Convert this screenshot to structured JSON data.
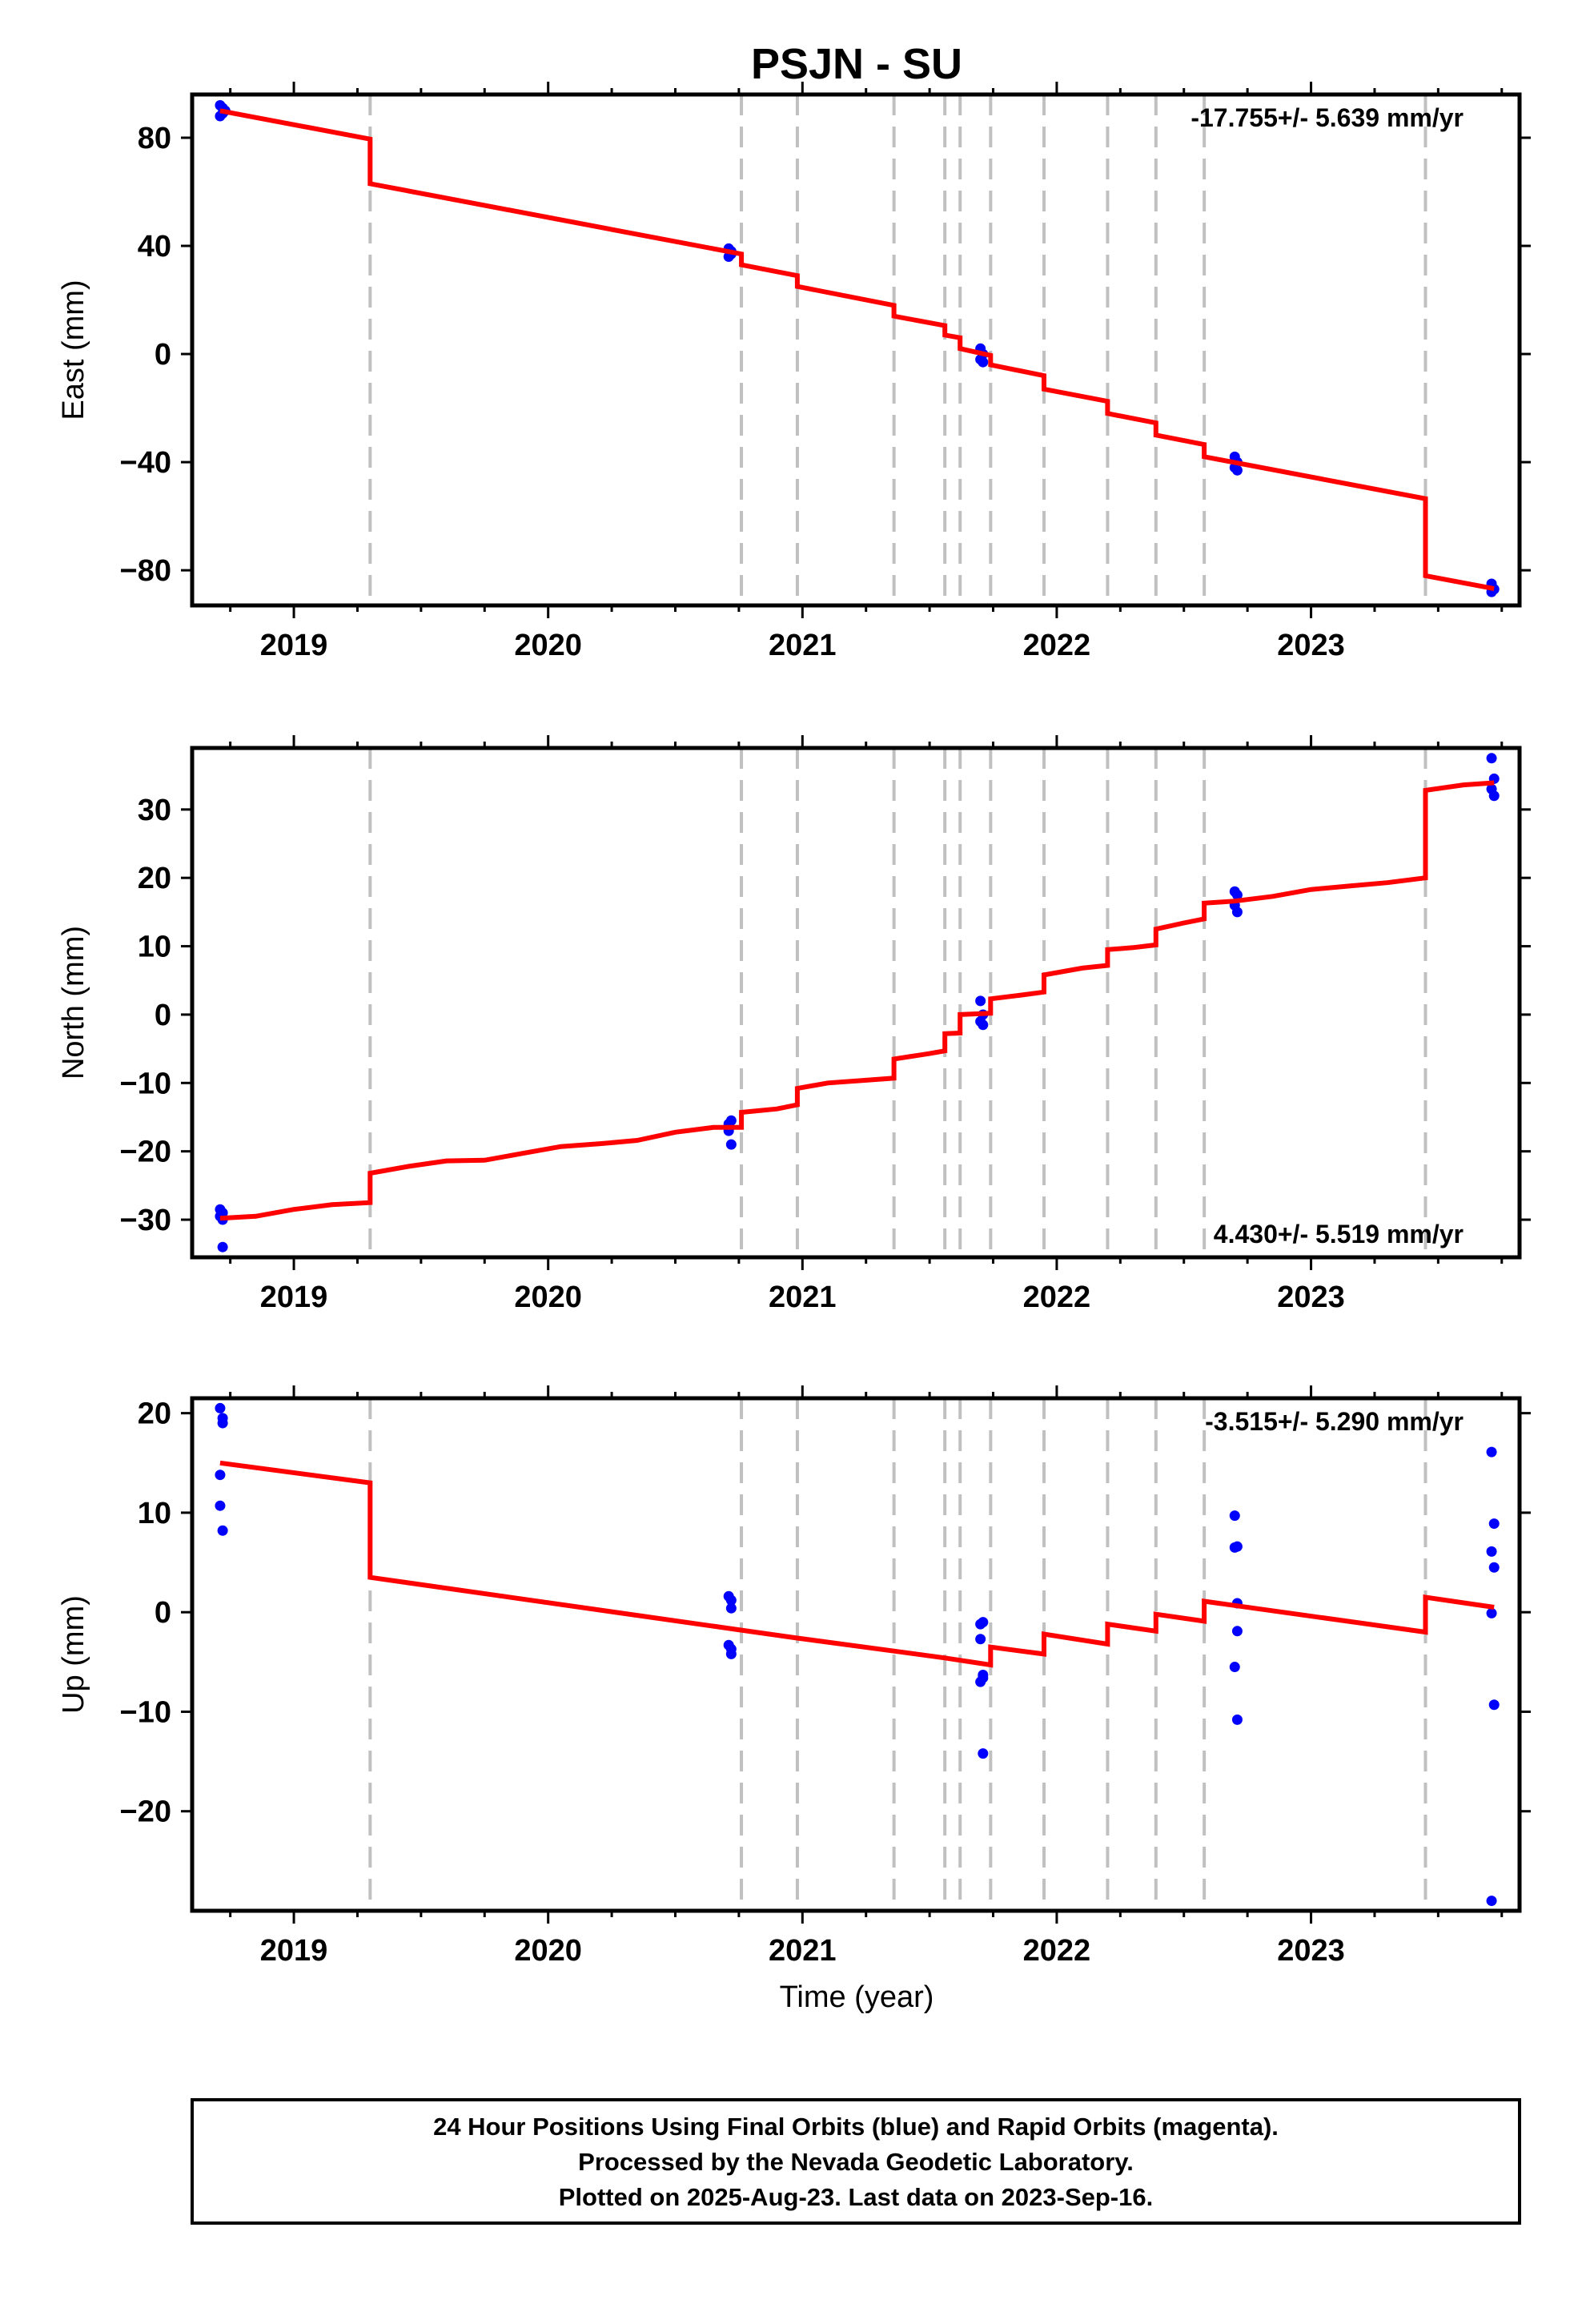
{
  "title": "PSJN - SU",
  "xlabel": "Time (year)",
  "x_tick_labels": [
    "2019",
    "2020",
    "2021",
    "2022",
    "2023"
  ],
  "xlim": [
    2018.6,
    2023.82
  ],
  "colors": {
    "fit": "#ff0000",
    "final": "#0000ff",
    "event": "#c0c0c0"
  },
  "event_lines": [
    2019.3,
    2020.76,
    2020.98,
    2021.36,
    2021.56,
    2021.62,
    2021.74,
    2021.95,
    2022.2,
    2022.39,
    2022.58,
    2023.45
  ],
  "chart_data": [
    {
      "type": "scatter",
      "name_key": "east",
      "ylabel": "East (mm)",
      "ylim": [
        -93,
        96
      ],
      "yticks": [
        80,
        40,
        0,
        -40,
        -80
      ],
      "ytick_labels": [
        "80",
        "40",
        "0",
        "−40",
        "−80"
      ],
      "rate": "-17.755+/- 5.639 mm/yr",
      "rate_position": "top-right",
      "series": [
        {
          "name": "",
          "style": "points",
          "x": [
            2018.71,
            2018.72,
            2018.71,
            2018.72,
            2018.73,
            2020.71,
            2020.72,
            2020.71,
            2020.72,
            2021.7,
            2021.71,
            2021.7,
            2021.71,
            2022.7,
            2022.71,
            2022.7,
            2022.71,
            2023.71,
            2023.72,
            2023.71
          ],
          "y": [
            92,
            89,
            88,
            91,
            90,
            39,
            37,
            36,
            38,
            2,
            0,
            -2,
            -3,
            -38,
            -40,
            -42,
            -43,
            -85,
            -87,
            -88
          ]
        },
        {
          "name": "",
          "style": "line",
          "x": [
            2018.71,
            2019.3,
            2019.3,
            2020.76,
            2020.76,
            2020.98,
            2020.98,
            2021.36,
            2021.36,
            2021.56,
            2021.56,
            2021.62,
            2021.62,
            2021.74,
            2021.74,
            2021.95,
            2021.95,
            2022.2,
            2022.2,
            2022.39,
            2022.39,
            2022.58,
            2022.58,
            2023.45,
            2023.45,
            2023.72
          ],
          "y": [
            90,
            79.5,
            63,
            37,
            33,
            29,
            25,
            18,
            14,
            10.5,
            7,
            6,
            2,
            -0.5,
            -4,
            -8,
            -13,
            -17.5,
            -22,
            -25.5,
            -30,
            -33.5,
            -38,
            -53.5,
            -82,
            -86.8
          ]
        }
      ]
    },
    {
      "type": "scatter",
      "name_key": "north",
      "ylabel": "North (mm)",
      "ylim": [
        -35.5,
        39
      ],
      "yticks": [
        30,
        20,
        10,
        0,
        -10,
        -20,
        -30
      ],
      "ytick_labels": [
        "30",
        "20",
        "10",
        "0",
        "−10",
        "−20",
        "−30"
      ],
      "rate": "4.430+/- 5.519 mm/yr",
      "rate_position": "bottom-right",
      "series": [
        {
          "name": "",
          "style": "points",
          "x": [
            2018.71,
            2018.72,
            2018.71,
            2018.72,
            2018.72,
            2020.71,
            2020.72,
            2020.71,
            2020.72,
            2020.71,
            2021.7,
            2021.71,
            2021.7,
            2021.71,
            2022.7,
            2022.71,
            2022.7,
            2022.71,
            2023.71,
            2023.72,
            2023.71,
            2023.72
          ],
          "y": [
            -28.5,
            -29,
            -29.5,
            -30,
            -34,
            -16,
            -15.5,
            -17,
            -19,
            -16.5,
            2,
            0,
            -1,
            -1.5,
            18,
            17.5,
            16,
            15,
            37.5,
            34.5,
            33,
            32
          ]
        },
        {
          "name": "",
          "style": "line",
          "x": [
            2018.71,
            2018.85,
            2019.0,
            2019.15,
            2019.3,
            2019.3,
            2019.45,
            2019.6,
            2019.75,
            2019.9,
            2020.05,
            2020.2,
            2020.35,
            2020.5,
            2020.65,
            2020.76,
            2020.76,
            2020.9,
            2020.98,
            2020.98,
            2021.1,
            2021.25,
            2021.36,
            2021.36,
            2021.5,
            2021.56,
            2021.56,
            2021.62,
            2021.62,
            2021.74,
            2021.74,
            2021.85,
            2021.95,
            2021.95,
            2022.1,
            2022.2,
            2022.2,
            2022.3,
            2022.39,
            2022.39,
            2022.5,
            2022.58,
            2022.58,
            2022.7,
            2022.85,
            2023.0,
            2023.15,
            2023.3,
            2023.45,
            2023.45,
            2023.6,
            2023.72
          ],
          "y": [
            -29.8,
            -29.5,
            -28.5,
            -27.8,
            -27.5,
            -23.2,
            -22.2,
            -21.4,
            -21.3,
            -20.3,
            -19.3,
            -18.9,
            -18.4,
            -17.2,
            -16.5,
            -16.5,
            -14.3,
            -13.8,
            -13.2,
            -10.8,
            -10,
            -9.6,
            -9.3,
            -6.5,
            -5.7,
            -5.3,
            -2.8,
            -2.7,
            0,
            0.2,
            2.3,
            2.8,
            3.3,
            5.8,
            6.8,
            7.2,
            9.5,
            9.8,
            10.2,
            12.5,
            13.4,
            14,
            16.3,
            16.6,
            17.3,
            18.3,
            18.8,
            19.3,
            20,
            32.8,
            33.6,
            33.9
          ]
        }
      ]
    },
    {
      "type": "scatter",
      "name_key": "up",
      "ylabel": "Up (mm)",
      "ylim": [
        -30,
        21.5
      ],
      "yticks": [
        20,
        10,
        0,
        -10,
        -20
      ],
      "ytick_labels": [
        "20",
        "10",
        "0",
        "−10",
        "−20"
      ],
      "rate": "-3.515+/- 5.290 mm/yr",
      "rate_position": "top-right",
      "series": [
        {
          "name": "",
          "style": "points",
          "x": [
            2018.71,
            2018.72,
            2018.72,
            2018.71,
            2018.71,
            2018.72,
            2020.71,
            2020.72,
            2020.72,
            2020.71,
            2020.72,
            2020.72,
            2021.7,
            2021.71,
            2021.7,
            2021.71,
            2021.71,
            2021.7,
            2021.71,
            2022.7,
            2022.71,
            2022.7,
            2022.71,
            2022.71,
            2022.7,
            2022.71,
            2023.71,
            2023.72,
            2023.71,
            2023.72,
            2023.71,
            2023.72,
            2023.71
          ],
          "y": [
            20.5,
            19.5,
            19,
            13.8,
            10.7,
            8.2,
            1.6,
            1.2,
            0.4,
            -3.3,
            -3.7,
            -4.2,
            -1.2,
            -1.0,
            -2.7,
            -6.3,
            -6.6,
            -7.0,
            -14.2,
            9.7,
            6.6,
            6.5,
            0.9,
            -1.9,
            -5.5,
            -10.8,
            16.1,
            8.9,
            6.1,
            4.5,
            -0.1,
            -9.3,
            -29
          ]
        },
        {
          "name": "",
          "style": "line",
          "x": [
            2018.71,
            2019.3,
            2019.3,
            2020.76,
            2020.98,
            2021.36,
            2021.56,
            2021.74,
            2021.74,
            2021.95,
            2021.95,
            2022.2,
            2022.2,
            2022.39,
            2022.39,
            2022.58,
            2022.58,
            2023.45,
            2023.45,
            2023.72
          ],
          "y": [
            15,
            13,
            3.5,
            -1.8,
            -2.6,
            -3.9,
            -4.6,
            -5.3,
            -3.5,
            -4.2,
            -2.2,
            -3.2,
            -1.2,
            -1.9,
            -0.2,
            -0.9,
            1.1,
            -2,
            1.5,
            0.5
          ]
        }
      ]
    }
  ],
  "footer": {
    "line1": "24 Hour Positions Using Final Orbits (blue) and Rapid Orbits (magenta).",
    "line2": "Processed by the Nevada Geodetic Laboratory.",
    "line3": "Plotted on 2025-Aug-23. Last data on 2023-Sep-16."
  }
}
